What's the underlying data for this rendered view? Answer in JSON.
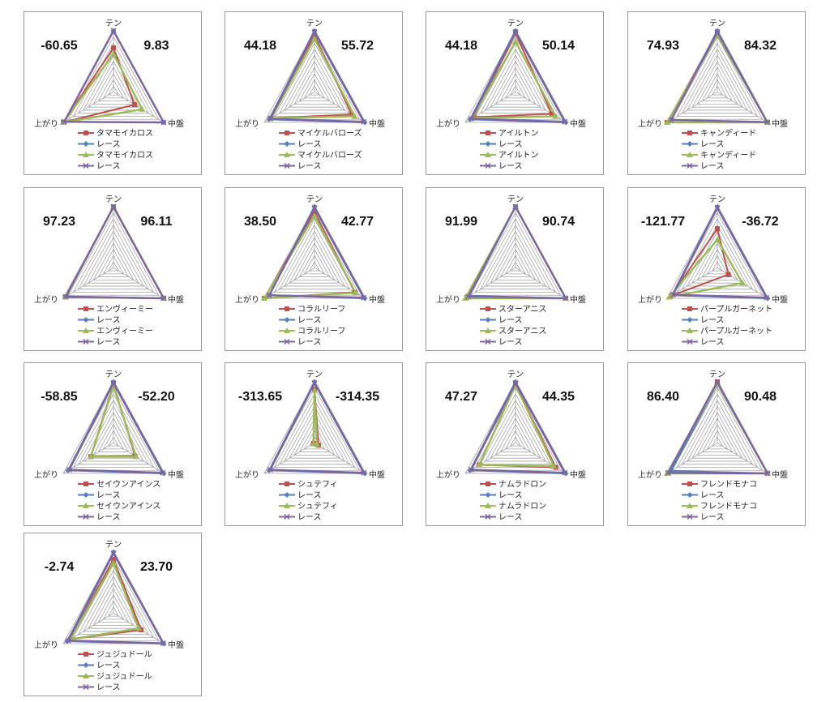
{
  "axes": [
    "テン",
    "中盤",
    "上がり"
  ],
  "series_colors": {
    "horse_outline": "#c0504d",
    "race_outline": "#4f81bd",
    "horse_fill": "#9bbb59",
    "race_fill": "#8064a2"
  },
  "chart_data": [
    {
      "type": "radar",
      "left_value": "-60.65",
      "right_value": "9.83",
      "legend": [
        "タマモイカロス",
        "レース",
        "タマモイカロス",
        "レース"
      ],
      "horse_outline": [
        0.72,
        0.42,
        1.0
      ],
      "race_outline": [
        1.0,
        1.0,
        0.98
      ],
      "horse_fill": [
        0.62,
        0.57,
        1.0
      ],
      "race_fill": [
        1.0,
        1.0,
        0.98
      ]
    },
    {
      "type": "radar",
      "left_value": "44.18",
      "right_value": "55.72",
      "legend": [
        "マイケルバローズ",
        "レース",
        "マイケルバローズ",
        "レース"
      ],
      "horse_outline": [
        0.93,
        0.74,
        0.86
      ],
      "race_outline": [
        1.0,
        1.0,
        0.9
      ],
      "horse_fill": [
        0.87,
        0.8,
        0.86
      ],
      "race_fill": [
        0.98,
        0.98,
        0.88
      ]
    },
    {
      "type": "radar",
      "left_value": "44.18",
      "right_value": "50.14",
      "legend": [
        "アイルトン",
        "レース",
        "アイルトン",
        "レース"
      ],
      "horse_outline": [
        0.96,
        0.72,
        0.83
      ],
      "race_outline": [
        1.0,
        1.0,
        0.9
      ],
      "horse_fill": [
        0.82,
        0.8,
        0.86
      ],
      "race_fill": [
        0.98,
        0.98,
        0.88
      ]
    },
    {
      "type": "radar",
      "left_value": "74.93",
      "right_value": "84.32",
      "legend": [
        "キャンディード",
        "レース",
        "キャンディード",
        "レース"
      ],
      "horse_outline": [
        0.97,
        1.0,
        1.0
      ],
      "race_outline": [
        1.0,
        1.0,
        0.92
      ],
      "horse_fill": [
        0.93,
        1.0,
        1.0
      ],
      "race_fill": [
        0.98,
        0.99,
        0.92
      ]
    },
    {
      "type": "radar",
      "left_value": "97.23",
      "right_value": "96.11",
      "legend": [
        "エンヴィーミー",
        "レース",
        "エンヴィーミー",
        "レース"
      ],
      "horse_outline": [
        1.0,
        1.0,
        0.96
      ],
      "race_outline": [
        1.0,
        1.0,
        0.94
      ],
      "horse_fill": [
        0.99,
        1.0,
        0.96
      ],
      "race_fill": [
        1.0,
        1.0,
        0.95
      ]
    },
    {
      "type": "radar",
      "left_value": "38.50",
      "right_value": "42.77",
      "legend": [
        "コラルリーフ",
        "レース",
        "コラルリーフ",
        "レース"
      ],
      "horse_outline": [
        0.92,
        0.8,
        1.0
      ],
      "race_outline": [
        1.0,
        1.0,
        0.9
      ],
      "horse_fill": [
        0.85,
        0.82,
        1.0
      ],
      "race_fill": [
        0.98,
        0.98,
        0.9
      ]
    },
    {
      "type": "radar",
      "left_value": "91.99",
      "right_value": "90.74",
      "legend": [
        "スターアニス",
        "レース",
        "スターアニス",
        "レース"
      ],
      "horse_outline": [
        1.0,
        1.0,
        0.97
      ],
      "race_outline": [
        1.0,
        1.0,
        0.92
      ],
      "horse_fill": [
        1.0,
        1.0,
        1.0
      ],
      "race_fill": [
        1.0,
        1.0,
        0.94
      ]
    },
    {
      "type": "radar",
      "left_value": "-121.77",
      "right_value": "-36.72",
      "legend": [
        "パープルガーネット",
        "レース",
        "パープルガーネット",
        "レース"
      ],
      "horse_outline": [
        0.64,
        0.22,
        0.92
      ],
      "race_outline": [
        1.0,
        1.0,
        0.9
      ],
      "horse_fill": [
        0.46,
        0.5,
        0.96
      ],
      "race_fill": [
        0.98,
        0.98,
        0.88
      ]
    },
    {
      "type": "radar",
      "left_value": "-58.85",
      "right_value": "-52.20",
      "legend": [
        "セイウンアインス",
        "レース",
        "セイウンアインス",
        "レース"
      ],
      "horse_outline": [
        0.96,
        0.43,
        0.45
      ],
      "race_outline": [
        1.0,
        1.0,
        0.9
      ],
      "horse_fill": [
        0.93,
        0.45,
        0.45
      ],
      "race_fill": [
        0.98,
        0.98,
        0.88
      ]
    },
    {
      "type": "radar",
      "left_value": "-313.65",
      "right_value": "-314.35",
      "legend": [
        "シュテフィ",
        "レース",
        "シュテフィ",
        "レース"
      ],
      "horse_outline": [
        0.88,
        0.08,
        0.02
      ],
      "race_outline": [
        1.0,
        1.0,
        0.9
      ],
      "horse_fill": [
        0.86,
        0.05,
        0.02
      ],
      "race_fill": [
        0.98,
        0.98,
        0.88
      ]
    },
    {
      "type": "radar",
      "left_value": "47.27",
      "right_value": "44.35",
      "legend": [
        "ナムラドロン",
        "レース",
        "ナムラドロン",
        "レース"
      ],
      "horse_outline": [
        0.96,
        0.8,
        0.72
      ],
      "race_outline": [
        1.0,
        1.0,
        0.9
      ],
      "horse_fill": [
        0.95,
        0.76,
        0.72
      ],
      "race_fill": [
        0.98,
        0.98,
        0.88
      ]
    },
    {
      "type": "radar",
      "left_value": "86.40",
      "right_value": "90.48",
      "legend": [
        "フレンドモナコ",
        "レース",
        "フレンドモナコ",
        "レース"
      ],
      "horse_outline": [
        1.0,
        1.0,
        0.98
      ],
      "race_outline": [
        0.96,
        1.0,
        0.92
      ],
      "horse_fill": [
        0.97,
        1.0,
        1.0
      ],
      "race_fill": [
        1.0,
        1.0,
        0.98
      ]
    },
    {
      "type": "radar",
      "left_value": "-2.74",
      "right_value": "23.70",
      "legend": [
        "ジュジュドール",
        "レース",
        "ジュジュドール",
        "レース"
      ],
      "horse_outline": [
        0.88,
        0.55,
        0.86
      ],
      "race_outline": [
        1.0,
        1.0,
        0.92
      ],
      "horse_fill": [
        0.82,
        0.5,
        0.86
      ],
      "race_fill": [
        0.98,
        0.99,
        0.9
      ]
    }
  ]
}
